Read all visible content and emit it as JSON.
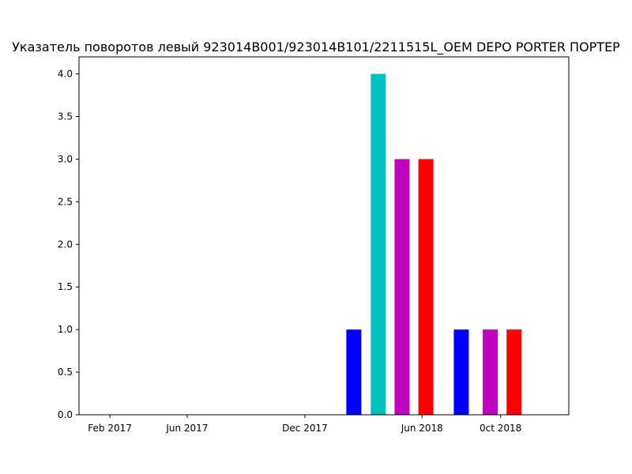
{
  "chart_data": {
    "type": "bar",
    "title": "Указатель поворотов левый 923014B001/923014B101/2211515L_OEM DEPO PORTER ПОРТЕР",
    "xlabel": "",
    "ylabel": "",
    "x_axis": {
      "type": "date",
      "range": [
        "2016-12-15",
        "2019-01-15"
      ],
      "ticks": [
        {
          "date": "2017-02-01",
          "label": "Feb 2017"
        },
        {
          "date": "2017-06-01",
          "label": "Jun 2017"
        },
        {
          "date": "2017-12-01",
          "label": "Dec 2017"
        },
        {
          "date": "2018-06-01",
          "label": "Jun 2018"
        },
        {
          "date": "2018-10-01",
          "label": "0ct 2018"
        }
      ]
    },
    "y_axis": {
      "range": [
        0,
        4.2
      ],
      "ticks": [
        0.0,
        0.5,
        1.0,
        1.5,
        2.0,
        2.5,
        3.0,
        3.5,
        4.0
      ],
      "tick_labels": [
        "0.0",
        "0.5",
        "1.0",
        "1.5",
        "2.0",
        "2.5",
        "3.0",
        "3.5",
        "4.0"
      ]
    },
    "grid": false,
    "legend": "none",
    "bars": [
      {
        "date": "2018-02-15",
        "value": 1,
        "color": "#0000ff"
      },
      {
        "date": "2018-03-25",
        "value": 4,
        "color": "#00bfbf"
      },
      {
        "date": "2018-05-01",
        "value": 3,
        "color": "#bf00bf"
      },
      {
        "date": "2018-06-07",
        "value": 3,
        "color": "#ff0000"
      },
      {
        "date": "2018-08-01",
        "value": 1,
        "color": "#0000ff"
      },
      {
        "date": "2018-09-15",
        "value": 1,
        "color": "#bf00bf"
      },
      {
        "date": "2018-10-22",
        "value": 1,
        "color": "#ff0000"
      }
    ]
  }
}
